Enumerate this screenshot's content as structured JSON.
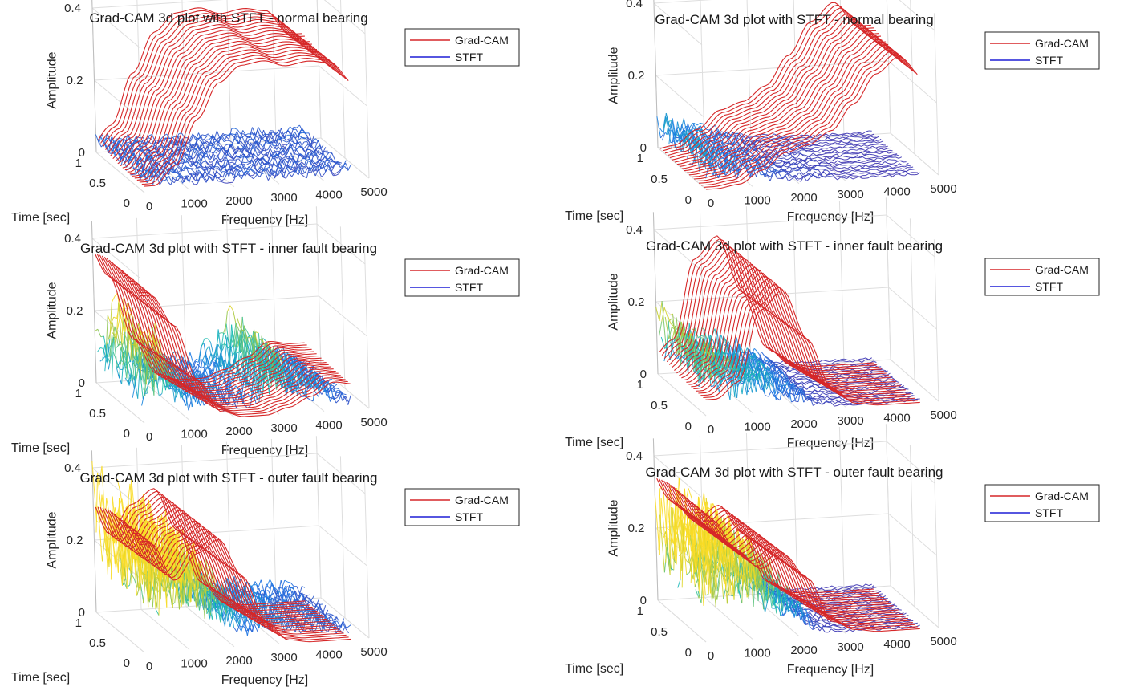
{
  "chart_data": [
    {
      "type": "line",
      "title": "Grad-CAM 3d plot with STFT - normal bearing",
      "xlabel": "Frequency [Hz]",
      "ylabel": "Time [sec]",
      "zlabel": "Amplitude",
      "xlim": [
        0,
        5000
      ],
      "ylim": [
        0,
        1
      ],
      "zlim": [
        0,
        0.4
      ],
      "x_ticks": [
        "0",
        "1000",
        "2000",
        "3000",
        "4000",
        "5000"
      ],
      "y_ticks": [
        "0",
        "0.5",
        "1"
      ],
      "z_ticks": [
        "0",
        "0.2",
        "0.4"
      ],
      "grid": true,
      "legend_position": "top-right",
      "series": [
        {
          "name": "Grad-CAM",
          "color": "#d62728",
          "type": "line",
          "x": [
            0,
            500,
            1000,
            1500,
            2000,
            2500,
            3000,
            3500,
            4000,
            4500
          ],
          "values": [
            0.02,
            0.08,
            0.22,
            0.33,
            0.38,
            0.39,
            0.37,
            0.38,
            0.37,
            0.3
          ]
        },
        {
          "name": "STFT",
          "color": "#1f1fd6",
          "type": "line",
          "x": [
            0,
            500,
            1000,
            1500,
            2000,
            2500,
            3000,
            3500,
            4000,
            4500
          ],
          "values": [
            0.03,
            0.025,
            0.02,
            0.02,
            0.02,
            0.02,
            0.02,
            0.02,
            0.02,
            0.02
          ]
        }
      ]
    },
    {
      "type": "line",
      "title": "Grad-CAM 3d plot with STFT - normal bearing",
      "xlabel": "Frequency [Hz]",
      "ylabel": "Time [sec]",
      "zlabel": "Amplitude",
      "xlim": [
        0,
        5000
      ],
      "ylim": [
        0,
        1
      ],
      "zlim": [
        0,
        0.4
      ],
      "x_ticks": [
        "0",
        "1000",
        "2000",
        "3000",
        "4000",
        "5000"
      ],
      "y_ticks": [
        "0",
        "0.5",
        "1"
      ],
      "z_ticks": [
        "0",
        "0.2",
        "0.4"
      ],
      "grid": true,
      "legend_position": "top-right",
      "series": [
        {
          "name": "Grad-CAM",
          "color": "#d62728",
          "type": "line",
          "x": [
            0,
            500,
            1000,
            1500,
            2000,
            2500,
            3000,
            3500,
            4000,
            4500
          ],
          "values": [
            0.0,
            0.01,
            0.05,
            0.1,
            0.12,
            0.16,
            0.24,
            0.33,
            0.38,
            0.31
          ]
        },
        {
          "name": "STFT",
          "color": "#1f1fd6",
          "type": "line",
          "x": [
            0,
            500,
            1000,
            1500,
            2000,
            2500,
            3000,
            3500,
            4000,
            4500
          ],
          "values": [
            0.05,
            0.04,
            0.03,
            0.02,
            0.01,
            0.01,
            0.005,
            0.005,
            0.005,
            0.005
          ]
        }
      ]
    },
    {
      "type": "line",
      "title": "Grad-CAM 3d plot with STFT - inner fault bearing",
      "xlabel": "Frequency [Hz]",
      "ylabel": "Time [sec]",
      "zlabel": "Amplitude",
      "xlim": [
        0,
        5000
      ],
      "ylim": [
        0,
        1
      ],
      "zlim": [
        0,
        0.4
      ],
      "x_ticks": [
        "0",
        "1000",
        "2000",
        "3000",
        "4000",
        "5000"
      ],
      "y_ticks": [
        "0",
        "0.5",
        "1"
      ],
      "z_ticks": [
        "0",
        "0.2",
        "0.4"
      ],
      "grid": true,
      "legend_position": "top-right",
      "series": [
        {
          "name": "Grad-CAM",
          "color": "#d62728",
          "type": "line",
          "x": [
            0,
            500,
            1000,
            1500,
            2000,
            2500,
            3000,
            3500,
            4000,
            4500
          ],
          "values": [
            0.4,
            0.3,
            0.12,
            0.02,
            0.0,
            0.0,
            0.02,
            0.05,
            0.09,
            0.08
          ]
        },
        {
          "name": "STFT",
          "color": "#1f1fd6",
          "type": "line",
          "x": [
            0,
            500,
            1000,
            1500,
            2000,
            2500,
            3000,
            3500,
            4000,
            4500
          ],
          "values": [
            0.08,
            0.12,
            0.05,
            0.04,
            0.03,
            0.05,
            0.09,
            0.05,
            0.04,
            0.02
          ]
        }
      ]
    },
    {
      "type": "line",
      "title": "Grad-CAM 3d plot with STFT - inner fault bearing",
      "xlabel": "Frequency [Hz]",
      "ylabel": "Time [sec]",
      "zlabel": "Amplitude",
      "xlim": [
        0,
        5000
      ],
      "ylim": [
        0,
        1
      ],
      "zlim": [
        0,
        0.4
      ],
      "x_ticks": [
        "0",
        "1000",
        "2000",
        "3000",
        "4000",
        "5000"
      ],
      "y_ticks": [
        "0",
        "0.5",
        "1"
      ],
      "z_ticks": [
        "0",
        "0.2",
        "0.4"
      ],
      "grid": true,
      "legend_position": "top-right",
      "series": [
        {
          "name": "Grad-CAM",
          "color": "#d62728",
          "type": "line",
          "x": [
            0,
            500,
            1000,
            1500,
            2000,
            2500,
            3000,
            3500,
            4000,
            4500
          ],
          "values": [
            0.05,
            0.1,
            0.32,
            0.38,
            0.22,
            0.06,
            0.01,
            0.0,
            0.0,
            0.0
          ]
        },
        {
          "name": "STFT",
          "color": "#1f1fd6",
          "type": "line",
          "x": [
            0,
            500,
            1000,
            1500,
            2000,
            2500,
            3000,
            3500,
            4000,
            4500
          ],
          "values": [
            0.1,
            0.07,
            0.06,
            0.05,
            0.03,
            0.01,
            0.005,
            0.005,
            0.005,
            0.005
          ]
        }
      ]
    },
    {
      "type": "line",
      "title": "Grad-CAM 3d plot with STFT - outer fault bearing",
      "xlabel": "Frequency [Hz]",
      "ylabel": "Time [sec]",
      "zlabel": "Amplitude",
      "xlim": [
        0,
        5000
      ],
      "ylim": [
        0,
        1
      ],
      "zlim": [
        0,
        0.4
      ],
      "x_ticks": [
        "0",
        "1000",
        "2000",
        "3000",
        "4000",
        "5000"
      ],
      "y_ticks": [
        "0",
        "0.5",
        "1"
      ],
      "z_ticks": [
        "0",
        "0.2",
        "0.4"
      ],
      "grid": true,
      "legend_position": "top-right",
      "series": [
        {
          "name": "Grad-CAM",
          "color": "#d62728",
          "type": "line",
          "x": [
            0,
            500,
            1000,
            1500,
            2000,
            2500,
            3000,
            3500,
            4000,
            4500
          ],
          "values": [
            0.34,
            0.22,
            0.3,
            0.34,
            0.22,
            0.07,
            0.01,
            0.0,
            0.0,
            0.0
          ]
        },
        {
          "name": "STFT",
          "color": "#1f1fd6",
          "type": "line",
          "x": [
            0,
            500,
            1000,
            1500,
            2000,
            2500,
            3000,
            3500,
            4000,
            4500
          ],
          "values": [
            0.22,
            0.15,
            0.16,
            0.12,
            0.06,
            0.04,
            0.04,
            0.03,
            0.03,
            0.02
          ]
        }
      ]
    },
    {
      "type": "line",
      "title": "Grad-CAM 3d plot with STFT - outer fault bearing",
      "xlabel": "Frequency [Hz]",
      "ylabel": "Time [sec]",
      "zlabel": "Amplitude",
      "xlim": [
        0,
        5000
      ],
      "ylim": [
        0,
        1
      ],
      "zlim": [
        0,
        0.4
      ],
      "x_ticks": [
        "0",
        "1000",
        "2000",
        "3000",
        "4000",
        "5000"
      ],
      "y_ticks": [
        "0",
        "0.5",
        "1"
      ],
      "z_ticks": [
        "0",
        "0.2",
        "0.4"
      ],
      "grid": true,
      "legend_position": "top-right",
      "series": [
        {
          "name": "Grad-CAM",
          "color": "#d62728",
          "type": "line",
          "x": [
            0,
            500,
            1000,
            1500,
            2000,
            2500,
            3000,
            3500,
            4000,
            4500
          ],
          "values": [
            0.38,
            0.28,
            0.22,
            0.26,
            0.18,
            0.04,
            0.01,
            0.0,
            0.0,
            0.0
          ]
        },
        {
          "name": "STFT",
          "color": "#1f1fd6",
          "type": "line",
          "x": [
            0,
            500,
            1000,
            1500,
            2000,
            2500,
            3000,
            3500,
            4000,
            4500
          ],
          "values": [
            0.15,
            0.16,
            0.14,
            0.1,
            0.05,
            0.01,
            0.005,
            0.005,
            0.005,
            0.005
          ]
        }
      ]
    }
  ]
}
